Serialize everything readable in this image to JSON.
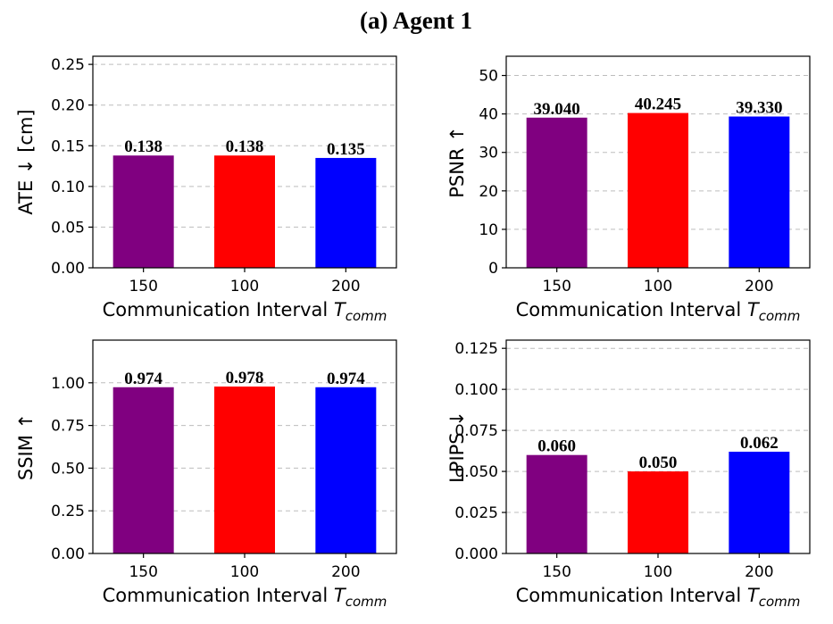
{
  "figure": {
    "title": "(a) Agent 1"
  },
  "chart_data": [
    {
      "type": "bar",
      "categories": [
        "150",
        "100",
        "200"
      ],
      "values": [
        0.138,
        0.138,
        0.135
      ],
      "value_labels": [
        "0.138",
        "0.138",
        "0.135"
      ],
      "colors": [
        "#800080",
        "#ff0000",
        "#0000ff"
      ],
      "xlabel": "Communication Interval",
      "xlabel_var": "T",
      "xlabel_sub": "comm",
      "ylabel": "ATE ↓  [cm]",
      "ylim": [
        0,
        0.26
      ],
      "yticks": [
        0,
        0.05,
        0.1,
        0.15,
        0.2,
        0.25
      ],
      "ytick_labels": [
        "0.00",
        "0.05",
        "0.10",
        "0.15",
        "0.20",
        "0.25"
      ],
      "grid": true
    },
    {
      "type": "bar",
      "categories": [
        "150",
        "100",
        "200"
      ],
      "values": [
        39.04,
        40.245,
        39.33
      ],
      "value_labels": [
        "39.040",
        "40.245",
        "39.330"
      ],
      "colors": [
        "#800080",
        "#ff0000",
        "#0000ff"
      ],
      "xlabel": "Communication Interval",
      "xlabel_var": "T",
      "xlabel_sub": "comm",
      "ylabel": "PSNR ↑",
      "ylim": [
        0,
        55
      ],
      "yticks": [
        0,
        10,
        20,
        30,
        40,
        50
      ],
      "ytick_labels": [
        "0",
        "10",
        "20",
        "30",
        "40",
        "50"
      ],
      "grid": true
    },
    {
      "type": "bar",
      "categories": [
        "150",
        "100",
        "200"
      ],
      "values": [
        0.974,
        0.978,
        0.974
      ],
      "value_labels": [
        "0.974",
        "0.978",
        "0.974"
      ],
      "colors": [
        "#800080",
        "#ff0000",
        "#0000ff"
      ],
      "xlabel": "Communication Interval",
      "xlabel_var": "T",
      "xlabel_sub": "comm",
      "ylabel": "SSIM ↑",
      "ylim": [
        0,
        1.25
      ],
      "yticks": [
        0,
        0.25,
        0.5,
        0.75,
        1.0
      ],
      "ytick_labels": [
        "0.00",
        "0.25",
        "0.50",
        "0.75",
        "1.00"
      ],
      "grid": true
    },
    {
      "type": "bar",
      "categories": [
        "150",
        "100",
        "200"
      ],
      "values": [
        0.06,
        0.05,
        0.062
      ],
      "value_labels": [
        "0.060",
        "0.050",
        "0.062"
      ],
      "colors": [
        "#800080",
        "#ff0000",
        "#0000ff"
      ],
      "xlabel": "Communication Interval",
      "xlabel_var": "T",
      "xlabel_sub": "comm",
      "ylabel": "LPIPS ↓",
      "ylim": [
        0,
        0.13
      ],
      "yticks": [
        0,
        0.025,
        0.05,
        0.075,
        0.1,
        0.125
      ],
      "ytick_labels": [
        "0.000",
        "0.025",
        "0.050",
        "0.075",
        "0.100",
        "0.125"
      ],
      "grid": true
    }
  ]
}
